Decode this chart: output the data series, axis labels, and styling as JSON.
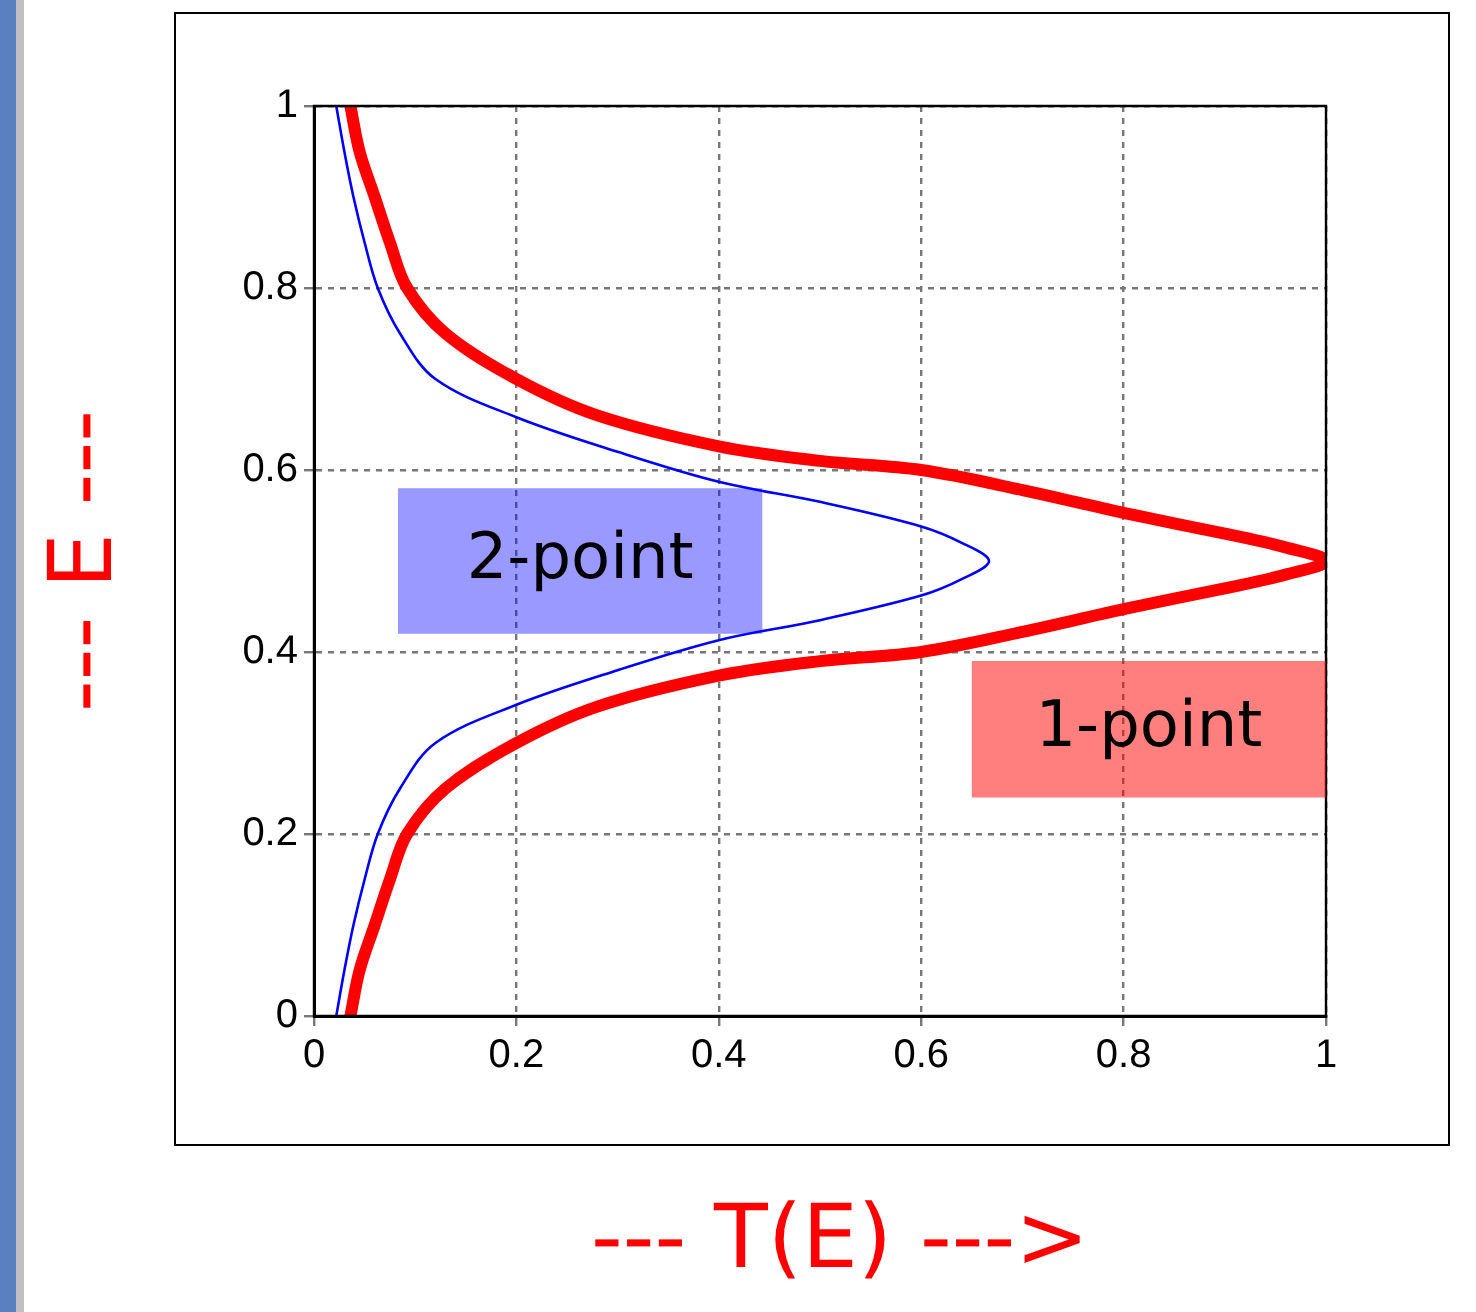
{
  "chart_data": {
    "type": "line",
    "xlabel": "--- T(E) --->",
    "ylabel": "--- E ---",
    "xlim": [
      0,
      1
    ],
    "ylim": [
      0,
      1
    ],
    "xticks": [
      0,
      0.2,
      0.4,
      0.6,
      0.8,
      1
    ],
    "yticks": [
      0,
      0.2,
      0.4,
      0.6,
      0.8,
      1
    ],
    "grid": true,
    "legend": false,
    "marker": "none",
    "line_style": "solid",
    "series": [
      {
        "name": "1-point",
        "color": "#ff0000",
        "x": [
          0.036,
          0.045,
          0.06,
          0.075,
          0.092,
          0.13,
          0.2,
          0.28,
          0.4,
          0.5,
          0.6,
          0.7,
          0.8,
          0.9,
          0.96,
          1,
          0.96,
          0.9,
          0.8,
          0.7,
          0.6,
          0.5,
          0.4,
          0.28,
          0.2,
          0.13,
          0.092,
          0.075,
          0.06,
          0.045,
          0.036
        ],
        "values": [
          1,
          0.95,
          0.9,
          0.85,
          0.8,
          0.75,
          0.7,
          0.66,
          0.626,
          0.61,
          0.6,
          0.578,
          0.553,
          0.53,
          0.515,
          0.5,
          0.485,
          0.47,
          0.447,
          0.422,
          0.4,
          0.39,
          0.374,
          0.34,
          0.3,
          0.25,
          0.2,
          0.15,
          0.1,
          0.05,
          0
        ]
      },
      {
        "name": "2-point",
        "color": "#0000ff",
        "x": [
          0.022,
          0.03,
          0.039,
          0.05,
          0.063,
          0.085,
          0.12,
          0.2,
          0.3,
          0.4,
          0.5,
          0.6,
          0.64,
          0.667,
          0.64,
          0.6,
          0.5,
          0.4,
          0.3,
          0.2,
          0.12,
          0.085,
          0.063,
          0.05,
          0.039,
          0.03,
          0.022
        ],
        "values": [
          1,
          0.95,
          0.9,
          0.85,
          0.8,
          0.75,
          0.7,
          0.658,
          0.62,
          0.587,
          0.565,
          0.538,
          0.52,
          0.5,
          0.48,
          0.462,
          0.435,
          0.413,
          0.38,
          0.342,
          0.3,
          0.25,
          0.2,
          0.15,
          0.1,
          0.05,
          0
        ]
      }
    ]
  }
}
